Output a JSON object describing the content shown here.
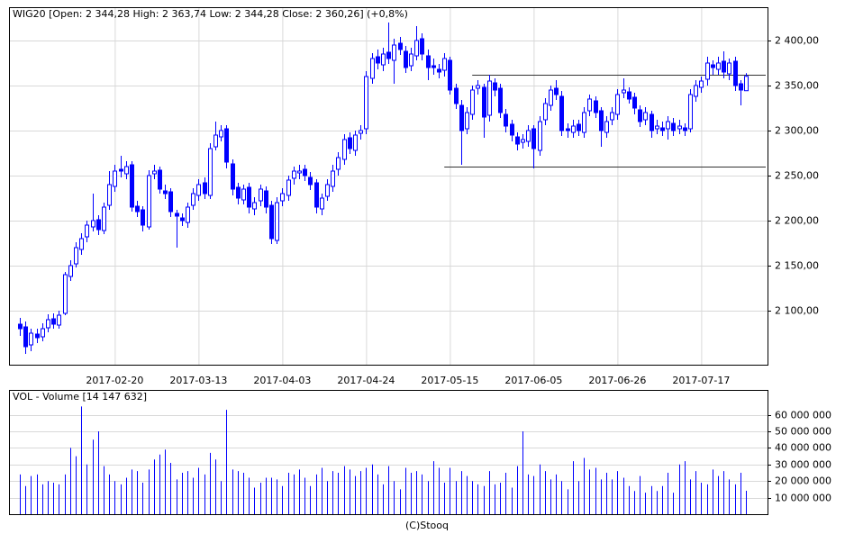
{
  "chart_data": [
    {
      "type": "candlestick",
      "title": "WIG20 [Open: 2 344,28  High: 2 363,74  Low: 2 344,28  Close: 2 360,26] (+0,8%)",
      "categories": [
        null,
        null,
        null,
        null,
        null,
        null,
        null,
        null,
        null,
        null,
        null,
        null,
        null,
        null,
        null,
        null,
        null,
        "2017-02-20",
        null,
        null,
        null,
        null,
        null,
        null,
        null,
        null,
        null,
        null,
        null,
        null,
        null,
        null,
        "2017-03-13",
        null,
        null,
        null,
        null,
        null,
        null,
        null,
        null,
        null,
        null,
        null,
        null,
        null,
        null,
        "2017-04-03",
        null,
        null,
        null,
        null,
        null,
        null,
        null,
        null,
        null,
        null,
        null,
        null,
        null,
        null,
        "2017-04-24",
        null,
        null,
        null,
        null,
        null,
        null,
        null,
        null,
        null,
        null,
        null,
        null,
        null,
        null,
        "2017-05-15",
        null,
        null,
        null,
        null,
        null,
        null,
        null,
        null,
        null,
        null,
        null,
        null,
        null,
        null,
        "2017-06-05",
        null,
        null,
        null,
        null,
        null,
        null,
        null,
        null,
        null,
        null,
        null,
        null,
        null,
        null,
        "2017-06-26",
        null,
        null,
        null,
        null,
        null,
        null,
        null,
        null,
        null,
        null,
        null,
        null,
        null,
        null,
        "2017-07-17",
        null,
        null,
        null,
        null,
        null,
        null,
        null,
        null
      ],
      "open": [
        2085,
        2082,
        2062,
        2074,
        2071,
        2081,
        2091,
        2084,
        2097,
        2138,
        2152,
        2168,
        2182,
        2193,
        2201,
        2189,
        2217,
        2238,
        2257,
        2252,
        2262,
        2216,
        2212,
        2193,
        2252,
        2256,
        2233,
        2232,
        2208,
        2203,
        2198,
        2217,
        2228,
        2242,
        2228,
        2282,
        2293,
        2302,
        2263,
        2237,
        2223,
        2237,
        2213,
        2222,
        2233,
        2217,
        2178,
        2222,
        2228,
        2247,
        2253,
        2257,
        2248,
        2242,
        2213,
        2227,
        2238,
        2257,
        2268,
        2292,
        2278,
        2297,
        2302,
        2358,
        2382,
        2373,
        2387,
        2378,
        2397,
        2388,
        2372,
        2383,
        2402,
        2383,
        2372,
        2368,
        2367,
        2378,
        2347,
        2328,
        2302,
        2318,
        2347,
        2348,
        2317,
        2353,
        2347,
        2318,
        2307,
        2293,
        2287,
        2288,
        2302,
        2278,
        2312,
        2328,
        2347,
        2338,
        2302,
        2298,
        2307,
        2298,
        2322,
        2333,
        2322,
        2298,
        2312,
        2318,
        2342,
        2343,
        2337,
        2323,
        2312,
        2318,
        2302,
        2303,
        2302,
        2308,
        2302,
        2303,
        2302,
        2338,
        2348,
        2357,
        2373,
        2368,
        2377,
        2363,
        2377,
        2352,
        2344.28
      ],
      "high": [
        2092,
        2088,
        2080,
        2080,
        2086,
        2096,
        2097,
        2100,
        2143,
        2156,
        2176,
        2186,
        2200,
        2230,
        2206,
        2220,
        2255,
        2262,
        2272,
        2266,
        2266,
        2222,
        2216,
        2256,
        2262,
        2260,
        2240,
        2236,
        2212,
        2208,
        2220,
        2236,
        2246,
        2248,
        2286,
        2310,
        2306,
        2306,
        2268,
        2242,
        2240,
        2242,
        2226,
        2240,
        2238,
        2222,
        2226,
        2236,
        2250,
        2260,
        2262,
        2262,
        2254,
        2246,
        2230,
        2246,
        2262,
        2276,
        2296,
        2298,
        2300,
        2306,
        2366,
        2386,
        2390,
        2392,
        2420,
        2402,
        2404,
        2394,
        2392,
        2416,
        2408,
        2390,
        2380,
        2374,
        2386,
        2382,
        2352,
        2334,
        2326,
        2350,
        2356,
        2352,
        2362,
        2358,
        2352,
        2324,
        2312,
        2298,
        2296,
        2306,
        2306,
        2316,
        2336,
        2350,
        2356,
        2344,
        2308,
        2312,
        2312,
        2326,
        2340,
        2338,
        2326,
        2316,
        2326,
        2346,
        2358,
        2348,
        2342,
        2328,
        2326,
        2322,
        2312,
        2310,
        2316,
        2314,
        2312,
        2308,
        2346,
        2356,
        2360,
        2382,
        2378,
        2382,
        2388,
        2380,
        2382,
        2356,
        2363.74
      ],
      "low": [
        2072,
        2052,
        2055,
        2064,
        2066,
        2076,
        2080,
        2080,
        2095,
        2133,
        2148,
        2162,
        2176,
        2188,
        2184,
        2185,
        2212,
        2232,
        2248,
        2246,
        2210,
        2204,
        2188,
        2190,
        2246,
        2230,
        2224,
        2204,
        2170,
        2194,
        2192,
        2212,
        2222,
        2224,
        2224,
        2278,
        2288,
        2258,
        2228,
        2218,
        2218,
        2208,
        2206,
        2216,
        2208,
        2174,
        2174,
        2216,
        2222,
        2240,
        2246,
        2244,
        2234,
        2208,
        2206,
        2222,
        2232,
        2250,
        2262,
        2274,
        2272,
        2290,
        2296,
        2352,
        2368,
        2366,
        2374,
        2352,
        2384,
        2364,
        2366,
        2378,
        2378,
        2356,
        2362,
        2358,
        2360,
        2340,
        2324,
        2262,
        2296,
        2312,
        2340,
        2292,
        2310,
        2338,
        2314,
        2298,
        2288,
        2278,
        2280,
        2282,
        2258,
        2272,
        2306,
        2322,
        2334,
        2294,
        2292,
        2292,
        2294,
        2292,
        2316,
        2314,
        2282,
        2292,
        2306,
        2312,
        2336,
        2330,
        2318,
        2304,
        2306,
        2292,
        2296,
        2294,
        2290,
        2294,
        2296,
        2294,
        2298,
        2332,
        2342,
        2350,
        2362,
        2362,
        2358,
        2356,
        2344,
        2328,
        2344.28
      ],
      "close": [
        2080,
        2060,
        2075,
        2070,
        2080,
        2090,
        2085,
        2095,
        2140,
        2150,
        2170,
        2180,
        2195,
        2200,
        2190,
        2215,
        2240,
        2255,
        2255,
        2260,
        2215,
        2210,
        2195,
        2250,
        2255,
        2235,
        2230,
        2210,
        2205,
        2200,
        2215,
        2230,
        2240,
        2230,
        2280,
        2295,
        2300,
        2265,
        2235,
        2225,
        2235,
        2215,
        2220,
        2235,
        2215,
        2180,
        2220,
        2230,
        2245,
        2255,
        2255,
        2250,
        2240,
        2215,
        2225,
        2240,
        2255,
        2270,
        2290,
        2280,
        2295,
        2300,
        2360,
        2380,
        2375,
        2385,
        2380,
        2395,
        2390,
        2370,
        2385,
        2400,
        2385,
        2370,
        2370,
        2365,
        2380,
        2345,
        2330,
        2300,
        2320,
        2345,
        2350,
        2315,
        2355,
        2345,
        2320,
        2305,
        2295,
        2285,
        2290,
        2300,
        2280,
        2310,
        2330,
        2345,
        2340,
        2300,
        2300,
        2305,
        2300,
        2320,
        2335,
        2320,
        2300,
        2310,
        2320,
        2340,
        2345,
        2335,
        2325,
        2310,
        2320,
        2300,
        2305,
        2300,
        2310,
        2300,
        2305,
        2300,
        2340,
        2350,
        2355,
        2375,
        2370,
        2375,
        2365,
        2375,
        2350,
        2345,
        2360.26
      ],
      "color": "#0000ff",
      "ylim": [
        2040,
        2437
      ],
      "yticks": [
        {
          "value": 2100,
          "label": "2 100,00"
        },
        {
          "value": 2150,
          "label": "2 150,00"
        },
        {
          "value": 2200,
          "label": "2 200,00"
        },
        {
          "value": 2250,
          "label": "2 250,00"
        },
        {
          "value": 2300,
          "label": "2 300,00"
        },
        {
          "value": 2350,
          "label": "2 350,00"
        },
        {
          "value": 2400,
          "label": "2 400,00"
        }
      ],
      "levels": [
        {
          "value": 2362,
          "from": 81
        },
        {
          "value": 2260,
          "from": 76
        }
      ],
      "grid": true
    },
    {
      "type": "bar",
      "title": "VOL - Volume [14 147 632]",
      "values": [
        24000000.0,
        17000000.0,
        23000000.0,
        24000000.0,
        18000000.0,
        20000000.0,
        19000000.0,
        18000000.0,
        24000000.0,
        40000000.0,
        35000000.0,
        65000000.0,
        30000000.0,
        45000000.0,
        50000000.0,
        29000000.0,
        24000000.0,
        20000000.0,
        18000000.0,
        22000000.0,
        27000000.0,
        26000000.0,
        19000000.0,
        27000000.0,
        33000000.0,
        36000000.0,
        39000000.0,
        31000000.0,
        21000000.0,
        25000000.0,
        26000000.0,
        22000000.0,
        28000000.0,
        24000000.0,
        37000000.0,
        33000000.0,
        20000000.0,
        63000000.0,
        27000000.0,
        26000000.0,
        25000000.0,
        22000000.0,
        16000000.0,
        19000000.0,
        22000000.0,
        22000000.0,
        21000000.0,
        17000000.0,
        25000000.0,
        24000000.0,
        27000000.0,
        22000000.0,
        17000000.0,
        24000000.0,
        28000000.0,
        20000000.0,
        26000000.0,
        25000000.0,
        29000000.0,
        27000000.0,
        23000000.0,
        26000000.0,
        28000000.0,
        30000000.0,
        24000000.0,
        18000000.0,
        29000000.0,
        20000000.0,
        15000000.0,
        28000000.0,
        25000000.0,
        26000000.0,
        24000000.0,
        20000000.0,
        32000000.0,
        28000000.0,
        19000000.0,
        28000000.0,
        20000000.0,
        26000000.0,
        23000000.0,
        20000000.0,
        18000000.0,
        17000000.0,
        26000000.0,
        18000000.0,
        19000000.0,
        25000000.0,
        16000000.0,
        29000000.0,
        50000000.0,
        24000000.0,
        23000000.0,
        30000000.0,
        26000000.0,
        21000000.0,
        24000000.0,
        20000000.0,
        15000000.0,
        32000000.0,
        20000000.0,
        34000000.0,
        27000000.0,
        28000000.0,
        21000000.0,
        25000000.0,
        21000000.0,
        26000000.0,
        22000000.0,
        17000000.0,
        14000000.0,
        23000000.0,
        13000000.0,
        17000000.0,
        14000000.0,
        17000000.0,
        25000000.0,
        13000000.0,
        30000000.0,
        32000000.0,
        21000000.0,
        26000000.0,
        19000000.0,
        18000000.0,
        27000000.0,
        23000000.0,
        26000000.0,
        21000000.0,
        18000000.0,
        25000000.0,
        14147632
      ],
      "color": "#0000ff",
      "ylim": [
        0,
        75000000
      ],
      "yticks": [
        {
          "value": 10000000,
          "label": "10 000 000"
        },
        {
          "value": 20000000,
          "label": "20 000 000"
        },
        {
          "value": 30000000,
          "label": "30 000 000"
        },
        {
          "value": 40000000,
          "label": "40 000 000"
        },
        {
          "value": 50000000,
          "label": "50 000 000"
        },
        {
          "value": 60000000,
          "label": "60 000 000"
        }
      ],
      "grid": true
    }
  ],
  "source": "(C)Stooq"
}
